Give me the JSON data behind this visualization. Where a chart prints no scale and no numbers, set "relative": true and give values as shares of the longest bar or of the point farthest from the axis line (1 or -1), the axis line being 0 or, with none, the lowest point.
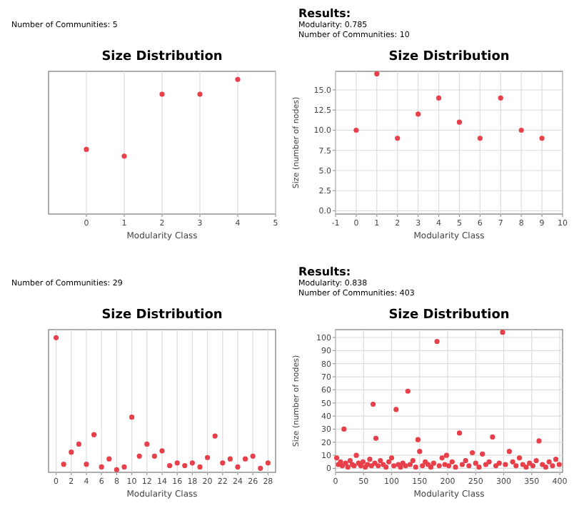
{
  "chart_data": [
    {
      "type": "scatter",
      "title": "Size Distribution",
      "xlabel": "Modularity Class",
      "annotations": [
        "Number of Communities: 5"
      ],
      "relative": true,
      "color": "#e8404a",
      "marker": "circle",
      "grid": true,
      "x": [
        0,
        1,
        2,
        3,
        4
      ],
      "values": [
        0.48,
        0.43,
        0.89,
        0.89,
        1
      ],
      "xlim": [
        -1,
        5
      ],
      "xticks": [
        0,
        1,
        2,
        3,
        4,
        5
      ]
    },
    {
      "type": "scatter",
      "title": "Size Distribution",
      "xlabel": "Modularity Class",
      "ylabel": "Size (number of nodes)",
      "annotations": [
        "Results:",
        "Modularity: 0.785",
        "Number of Communities: 10"
      ],
      "color": "#e8404a",
      "marker": "circle",
      "grid": true,
      "x": [
        0,
        1,
        2,
        3,
        4,
        5,
        6,
        7,
        8,
        9
      ],
      "values": [
        10,
        17,
        9,
        12,
        14,
        11,
        9,
        14,
        10,
        9
      ],
      "xlim": [
        -1,
        10
      ],
      "xticks": [
        -1,
        0,
        1,
        2,
        3,
        4,
        5,
        6,
        7,
        8,
        9,
        10
      ],
      "ylim": [
        -0.4,
        17.3
      ],
      "yticks": [
        {
          "value": 0,
          "label": "0.0"
        },
        {
          "value": 2.5,
          "label": "2.5"
        },
        {
          "value": 5,
          "label": "5.0"
        },
        {
          "value": 7.5,
          "label": "7.5"
        },
        {
          "value": 10,
          "label": "10.0"
        },
        {
          "value": 12.5,
          "label": "12.5"
        },
        {
          "value": 15,
          "label": "15.0"
        }
      ]
    },
    {
      "type": "scatter",
      "title": "Size Distribution",
      "xlabel": "Modularity Class",
      "annotations": [
        "Number of Communities: 29"
      ],
      "relative": true,
      "color": "#e8404a",
      "marker": "circle",
      "grid": true,
      "x": [
        0,
        1,
        2,
        3,
        4,
        5,
        6,
        7,
        8,
        9,
        10,
        11,
        12,
        13,
        14,
        15,
        16,
        17,
        18,
        19,
        20,
        21,
        22,
        23,
        24,
        25,
        26,
        27,
        28
      ],
      "values": [
        1,
        0.06,
        0.15,
        0.21,
        0.06,
        0.28,
        0.04,
        0.1,
        0.02,
        0.04,
        0.41,
        0.12,
        0.21,
        0.12,
        0.16,
        0.05,
        0.07,
        0.05,
        0.07,
        0.04,
        0.11,
        0.27,
        0.07,
        0.1,
        0.04,
        0.1,
        0.12,
        0.03,
        0.07
      ],
      "xlim": [
        -1,
        29
      ],
      "xticks": [
        0,
        2,
        4,
        6,
        8,
        10,
        12,
        14,
        16,
        18,
        20,
        22,
        24,
        26,
        28
      ]
    },
    {
      "type": "scatter",
      "title": "Size Distribution",
      "xlabel": "Modularity Class",
      "ylabel": "Size (number of nodes)",
      "annotations": [
        "Results:",
        "Modularity: 0.838",
        "Number of Communities: 403"
      ],
      "color": "#e8404a",
      "marker": "circle",
      "grid": true,
      "x": [
        2,
        5,
        9,
        12,
        15,
        18,
        22,
        26,
        30,
        33,
        37,
        41,
        45,
        49,
        53,
        57,
        61,
        64,
        67,
        70,
        72,
        76,
        80,
        85,
        90,
        95,
        100,
        104,
        108,
        112,
        116,
        120,
        125,
        129,
        133,
        138,
        143,
        147,
        150,
        155,
        160,
        165,
        170,
        175,
        181,
        185,
        190,
        195,
        198,
        202,
        208,
        214,
        221,
        226,
        232,
        238,
        244,
        250,
        256,
        262,
        268,
        274,
        280,
        286,
        292,
        298,
        303,
        310,
        316,
        322,
        328,
        334,
        340,
        346,
        352,
        358,
        363,
        369,
        375,
        381,
        387,
        393,
        399
      ],
      "values": [
        8,
        3,
        5,
        2,
        30,
        4,
        1,
        6,
        3,
        2,
        10,
        4,
        2,
        5,
        1,
        3,
        7,
        2,
        49,
        4,
        23,
        2,
        6,
        3,
        1,
        5,
        8,
        2,
        45,
        3,
        1,
        4,
        2,
        59,
        3,
        6,
        1,
        22,
        13,
        2,
        5,
        3,
        1,
        4,
        97,
        2,
        8,
        3,
        10,
        2,
        5,
        1,
        27,
        3,
        6,
        2,
        12,
        4,
        1,
        11,
        3,
        5,
        24,
        2,
        4,
        104,
        3,
        13,
        5,
        2,
        8,
        3,
        1,
        4,
        2,
        6,
        21,
        3,
        1,
        5,
        2,
        7,
        3
      ],
      "xlim": [
        0,
        405
      ],
      "xticks": [
        0,
        50,
        100,
        150,
        200,
        250,
        300,
        350,
        400
      ],
      "ylim": [
        -3,
        106
      ],
      "yticks": [
        0,
        10,
        20,
        30,
        40,
        50,
        60,
        70,
        80,
        90,
        100
      ]
    }
  ]
}
